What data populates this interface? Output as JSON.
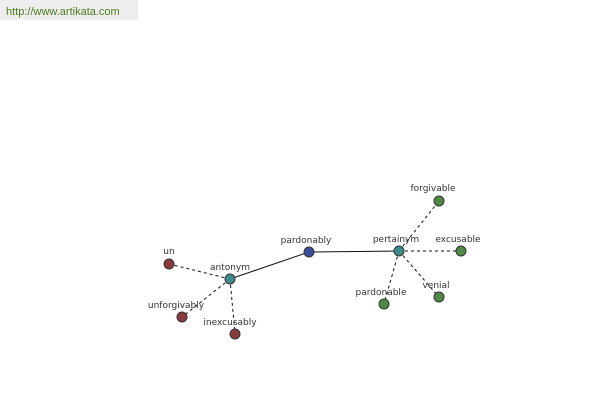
{
  "header": {
    "url": "http://www.artikata.com"
  },
  "nodes": [
    {
      "label": "pardonably"
    },
    {
      "label": "antonym"
    },
    {
      "label": "pertainym"
    },
    {
      "label": "un"
    },
    {
      "label": "unforgivably"
    },
    {
      "label": "inexcusably"
    },
    {
      "label": "forgivable"
    },
    {
      "label": "excusable"
    },
    {
      "label": "venial"
    },
    {
      "label": "pardonable"
    }
  ]
}
